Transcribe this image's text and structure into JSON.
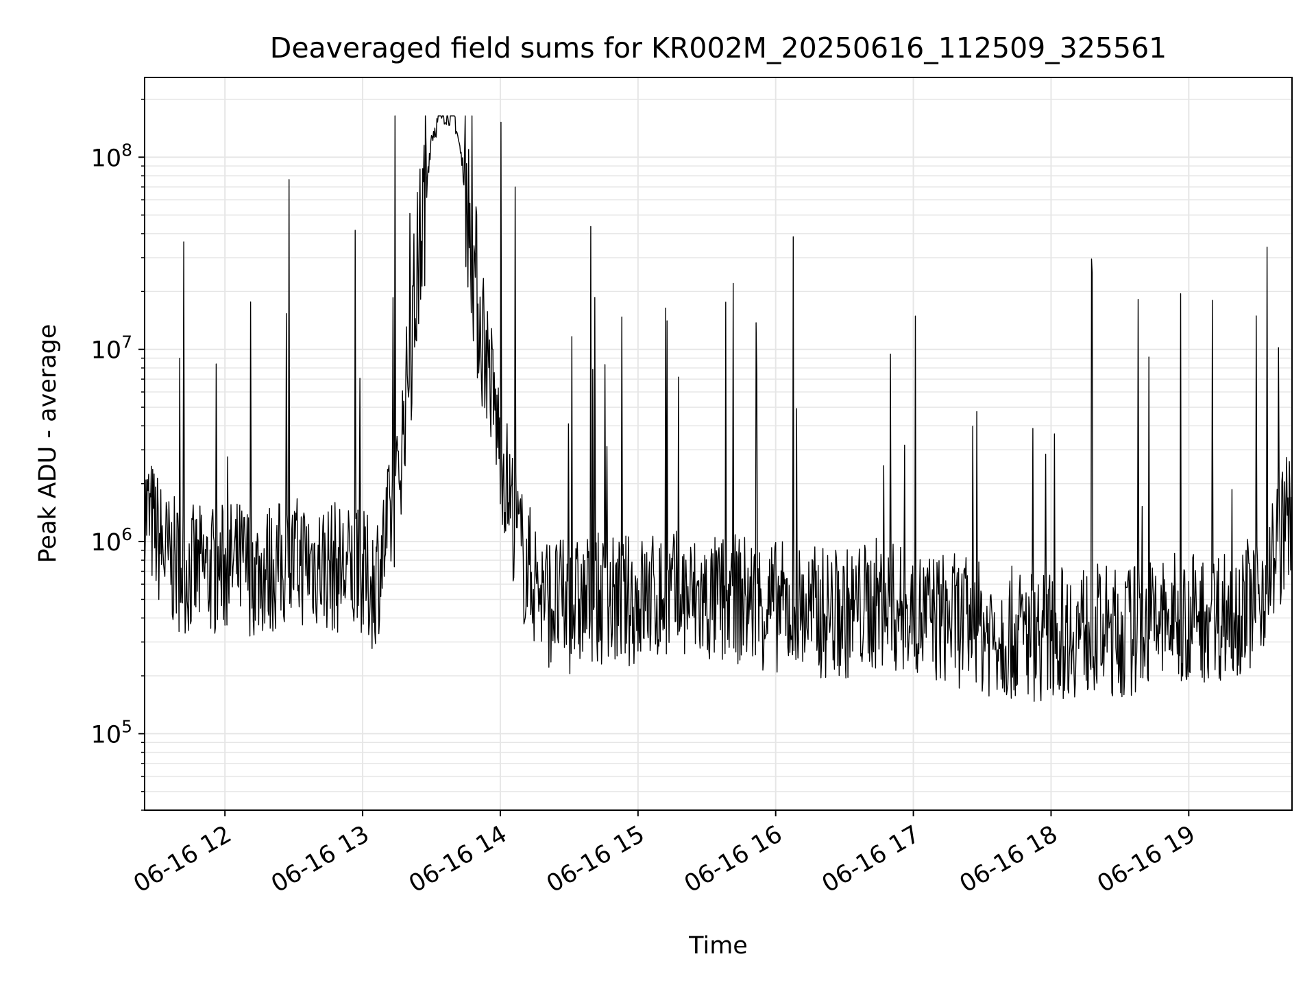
{
  "chart_data": {
    "type": "line",
    "title": "Deaveraged field sums for KR002M_20250616_112509_325561",
    "xlabel": "Time",
    "ylabel": "Peak ADU - average",
    "y_scale": "log",
    "ylim": [
      40000,
      260000000
    ],
    "xlim": [
      "2025-06-16 11:25",
      "2025-06-16 19:45"
    ],
    "grid": true,
    "line_color": "#000000",
    "grid_color": "#e6e6e6",
    "x_ticks": [
      {
        "time": "2025-06-16 12:00",
        "label": "06-16 12"
      },
      {
        "time": "2025-06-16 13:00",
        "label": "06-16 13"
      },
      {
        "time": "2025-06-16 14:00",
        "label": "06-16 14"
      },
      {
        "time": "2025-06-16 15:00",
        "label": "06-16 15"
      },
      {
        "time": "2025-06-16 16:00",
        "label": "06-16 16"
      },
      {
        "time": "2025-06-16 17:00",
        "label": "06-16 17"
      },
      {
        "time": "2025-06-16 18:00",
        "label": "06-16 18"
      },
      {
        "time": "2025-06-16 19:00",
        "label": "06-16 19"
      }
    ],
    "y_ticks": [
      {
        "value": 100000,
        "base": "10",
        "exp": "5"
      },
      {
        "value": 1000000,
        "base": "10",
        "exp": "6"
      },
      {
        "value": 10000000,
        "base": "10",
        "exp": "7"
      },
      {
        "value": 100000000,
        "base": "10",
        "exp": "8"
      }
    ],
    "series": [
      {
        "x": [
          "2025-06-16 11:25",
          "2025-06-16 11:35",
          "2025-06-16 11:45",
          "2025-06-16 11:55",
          "2025-06-16 12:05",
          "2025-06-16 12:15",
          "2025-06-16 12:25",
          "2025-06-16 12:35",
          "2025-06-16 12:45",
          "2025-06-16 12:55",
          "2025-06-16 13:05",
          "2025-06-16 13:10",
          "2025-06-16 13:15",
          "2025-06-16 13:20",
          "2025-06-16 13:25",
          "2025-06-16 13:30",
          "2025-06-16 13:35",
          "2025-06-16 13:40",
          "2025-06-16 13:45",
          "2025-06-16 13:50",
          "2025-06-16 13:55",
          "2025-06-16 14:00",
          "2025-06-16 14:05",
          "2025-06-16 14:10",
          "2025-06-16 14:20",
          "2025-06-16 14:30",
          "2025-06-16 14:40",
          "2025-06-16 14:50",
          "2025-06-16 15:00",
          "2025-06-16 15:15",
          "2025-06-16 15:30",
          "2025-06-16 15:45",
          "2025-06-16 16:00",
          "2025-06-16 16:15",
          "2025-06-16 16:30",
          "2025-06-16 16:45",
          "2025-06-16 17:00",
          "2025-06-16 17:15",
          "2025-06-16 17:30",
          "2025-06-16 17:45",
          "2025-06-16 18:00",
          "2025-06-16 18:15",
          "2025-06-16 18:30",
          "2025-06-16 18:45",
          "2025-06-16 19:00",
          "2025-06-16 19:15",
          "2025-06-16 19:30",
          "2025-06-16 19:45"
        ],
        "values": [
          1500000,
          800000,
          700000,
          700000,
          750000,
          700000,
          750000,
          800000,
          750000,
          700000,
          600000,
          1000000,
          1800000,
          8000000,
          35000000,
          130000000,
          170000000,
          165000000,
          70000000,
          18000000,
          8000000,
          3000000,
          1500000,
          800000,
          500000,
          450000,
          500000,
          480000,
          500000,
          520000,
          480000,
          500000,
          460000,
          430000,
          420000,
          480000,
          410000,
          400000,
          350000,
          330000,
          330000,
          350000,
          330000,
          380000,
          400000,
          420000,
          500000,
          1500000
        ]
      }
    ]
  }
}
